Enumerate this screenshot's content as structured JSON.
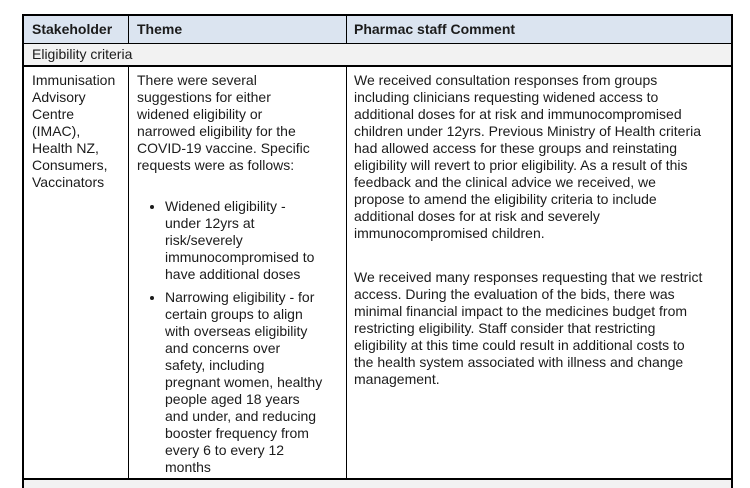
{
  "table": {
    "columns": [
      {
        "label": "Stakeholder"
      },
      {
        "label": "Theme"
      },
      {
        "label": "Pharmac staff Comment"
      }
    ],
    "section_header": "Eligibility criteria",
    "row": {
      "stakeholder": "Immunisation Advisory Centre (IMAC), Health NZ, Consumers, Vaccinators",
      "theme_intro": "There were several suggestions for either widened eligibility or narrowed eligibility for the COVID-19 vaccine. Specific requests were as follows:",
      "theme_bullets": [
        "Widened eligibility - under 12yrs at risk/severely immunocompromised to have additional doses",
        "Narrowing eligibility - for certain groups to align with overseas eligibility and concerns over safety, including pregnant women, healthy people aged 18 years and under, and reducing booster frequency from every 6 to every 12 months"
      ],
      "comment_paragraphs": [
        "We received consultation responses from groups including clinicians requesting widened access to additional doses for at risk and immunocompromised children under 12yrs. Previous Ministry of Health criteria had allowed access for these groups and reinstating eligibility will revert to prior eligibility. As a result of this feedback and the clinical advice we received, we propose to amend the eligibility criteria to include additional doses for at risk and severely immunocompromised children.",
        "We received many responses requesting that we restrict access. During the evaluation of the bids, there was minimal financial impact to the medicines budget from restricting eligibility. Staff consider that restricting eligibility at this time could result in additional costs to the health system associated with illness and change management."
      ]
    },
    "colors": {
      "header_bg": "#DBE4F0",
      "section_bg": "#F2F2F2",
      "border": "#000000",
      "text": "#1B1B1B"
    }
  }
}
